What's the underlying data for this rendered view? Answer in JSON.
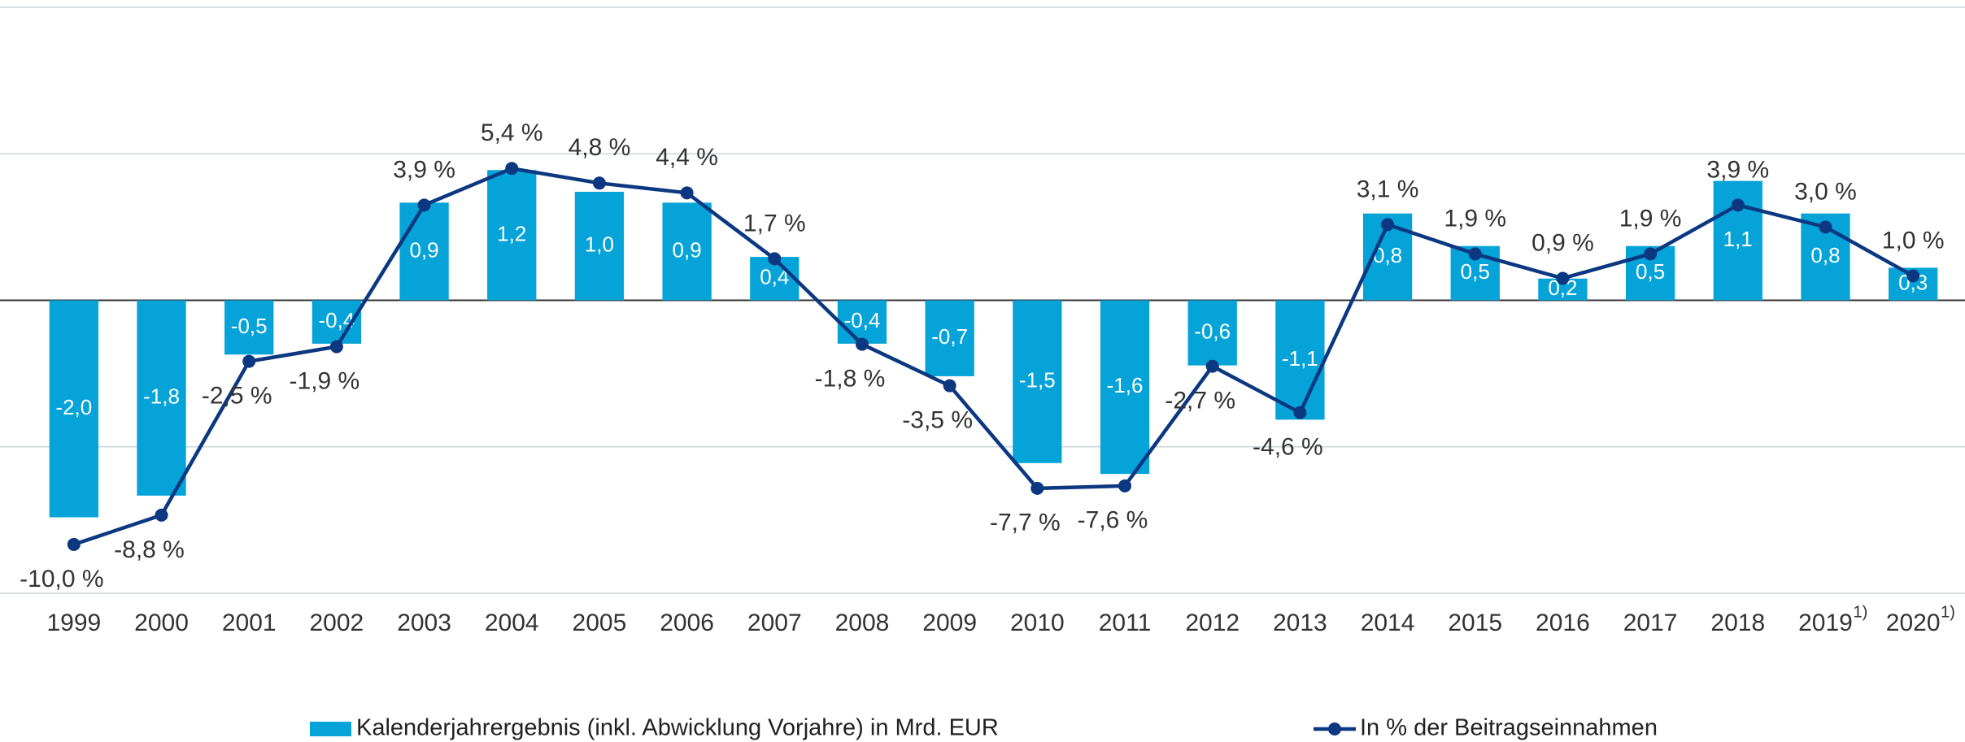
{
  "chart_data": {
    "type": "bar_line",
    "categories": [
      "1999",
      "2000",
      "2001",
      "2002",
      "2003",
      "2004",
      "2005",
      "2006",
      "2007",
      "2008",
      "2009",
      "2010",
      "2011",
      "2012",
      "2013",
      "2014",
      "2015",
      "2016",
      "2017",
      "2018",
      "2019",
      "2020"
    ],
    "category_notes": [
      null,
      null,
      null,
      null,
      null,
      null,
      null,
      null,
      null,
      null,
      null,
      null,
      null,
      null,
      null,
      null,
      null,
      null,
      null,
      null,
      "1)",
      "1)"
    ],
    "series": [
      {
        "name": "Kalenderjahrergebnis (inkl. Abwicklung Vorjahre) in Mrd. EUR",
        "type": "bar",
        "color": "#05a3d8",
        "values": [
          -2.0,
          -1.8,
          -0.5,
          -0.4,
          0.9,
          1.2,
          1.0,
          0.9,
          0.4,
          -0.4,
          -0.7,
          -1.5,
          -1.6,
          -0.6,
          -1.1,
          0.8,
          0.5,
          0.2,
          0.5,
          1.1,
          0.8,
          0.3
        ],
        "value_labels": [
          "-2,0",
          "-1,8",
          "-0,5",
          "-0,4",
          "0,9",
          "1,2",
          "1,0",
          "0,9",
          "0,4",
          "-0,4",
          "-0,7",
          "-1,5",
          "-1,6",
          "-0,6",
          "-1,1",
          "0,8",
          "0,5",
          "0,2",
          "0,5",
          "1,1",
          "0,8",
          "0,3"
        ]
      },
      {
        "name": "In % der Beitragseinnahmen",
        "type": "line",
        "axis": "y2",
        "color": "#0c3781",
        "values": [
          -10.0,
          -8.8,
          -2.5,
          -1.9,
          3.9,
          5.4,
          4.8,
          4.4,
          1.7,
          -1.8,
          -3.5,
          -7.7,
          -7.6,
          -2.7,
          -4.6,
          3.1,
          1.9,
          0.9,
          1.9,
          3.9,
          3.0,
          1.0
        ],
        "value_labels": [
          "-10,0 %",
          "-8,8 %",
          "-2,5 %",
          "-1,9 %",
          "3,9 %",
          "5,4 %",
          "4,8 %",
          "4,4 %",
          "1,7 %",
          "-1,8 %",
          "-3,5 %",
          "-7,7 %",
          "-7,6 %",
          "-2,7 %",
          "-4,6 %",
          "3,1 %",
          "1,9 %",
          "0,9 %",
          "1,9 %",
          "3,9 %",
          "3,0 %",
          "1,0 %"
        ]
      }
    ],
    "ylim": [
      -2.7,
      2.7
    ],
    "y2lim": [
      -12,
      12
    ],
    "y2ticks": [
      -12,
      -6,
      0,
      6,
      12
    ],
    "grid": true
  }
}
